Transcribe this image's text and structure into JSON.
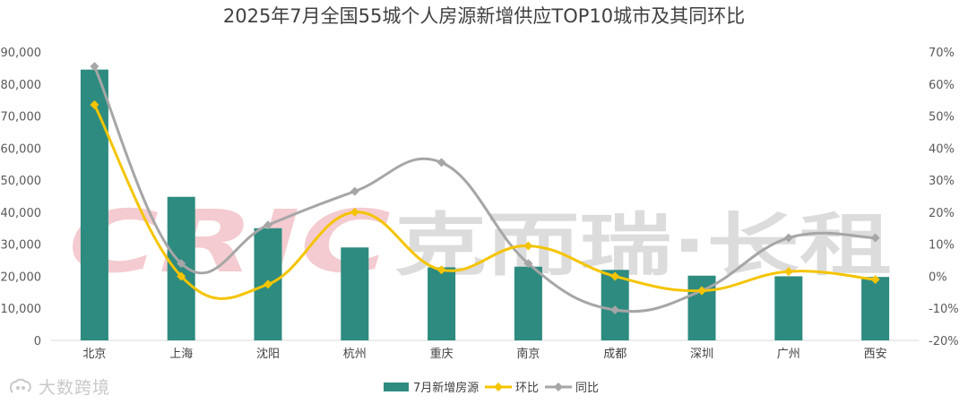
{
  "title": "2025年7月全国55城个人房源新增供应TOP10城市及其同环比",
  "watermark": {
    "latin": "CRIC",
    "cn": "克而瑞·长租"
  },
  "footer_brand": "大数跨境",
  "legend": [
    "7月新增房源",
    "环比",
    "同比"
  ],
  "colors": {
    "bar": "#2e8b80",
    "mom_line": "#f5c400",
    "yoy_line": "#a6a6a6",
    "axis": "#d9d9d9",
    "watermark_red": "#f4cbd0",
    "watermark_gray": "#dcdcdc"
  },
  "axis_labels": {
    "left": [
      "0",
      "10,000",
      "20,000",
      "30,000",
      "40,000",
      "50,000",
      "60,000",
      "70,000",
      "80,000",
      "90,000"
    ],
    "right": [
      "-20%",
      "-10%",
      "0%",
      "10%",
      "20%",
      "30%",
      "40%",
      "50%",
      "60%",
      "70%"
    ]
  },
  "chart_data": {
    "type": "bar",
    "title": "2025年7月全国55城个人房源新增供应TOP10城市及其同环比",
    "categories": [
      "北京",
      "上海",
      "沈阳",
      "杭州",
      "重庆",
      "南京",
      "成都",
      "深圳",
      "广州",
      "西安"
    ],
    "series": [
      {
        "name": "7月新增房源",
        "type": "bar",
        "axis": "left",
        "values": [
          84500,
          44800,
          35000,
          29000,
          22800,
          23000,
          22000,
          20200,
          20000,
          19800
        ]
      },
      {
        "name": "环比",
        "type": "line",
        "axis": "right",
        "marker": "diamond",
        "values": [
          0.535,
          0.0,
          -0.025,
          0.2,
          0.02,
          0.095,
          0.0,
          -0.045,
          0.015,
          -0.01
        ]
      },
      {
        "name": "同比",
        "type": "line",
        "axis": "right",
        "marker": "diamond",
        "values": [
          0.655,
          0.04,
          0.16,
          0.265,
          0.355,
          0.04,
          -0.105,
          -0.045,
          0.12,
          0.12
        ]
      }
    ],
    "y_left": {
      "min": 0,
      "max": 90000,
      "step": 10000
    },
    "y_right": {
      "min": -0.2,
      "max": 0.7,
      "step": 0.1
    },
    "grid": false,
    "legend_position": "bottom"
  }
}
